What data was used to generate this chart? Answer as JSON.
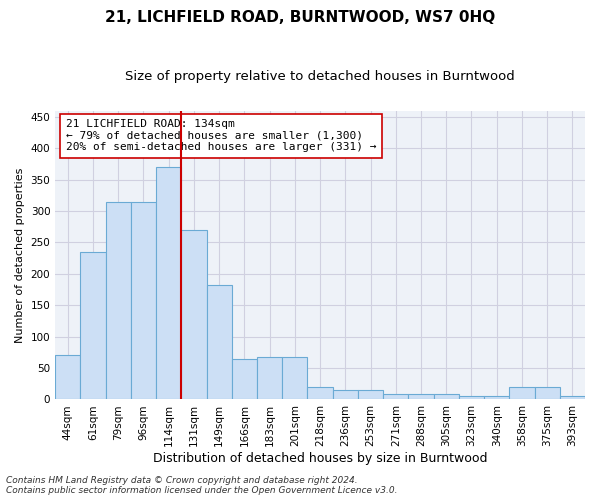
{
  "title": "21, LICHFIELD ROAD, BURNTWOOD, WS7 0HQ",
  "subtitle": "Size of property relative to detached houses in Burntwood",
  "xlabel": "Distribution of detached houses by size in Burntwood",
  "ylabel": "Number of detached properties",
  "categories": [
    "44sqm",
    "61sqm",
    "79sqm",
    "96sqm",
    "114sqm",
    "131sqm",
    "149sqm",
    "166sqm",
    "183sqm",
    "201sqm",
    "218sqm",
    "236sqm",
    "253sqm",
    "271sqm",
    "288sqm",
    "305sqm",
    "323sqm",
    "340sqm",
    "358sqm",
    "375sqm",
    "393sqm"
  ],
  "values": [
    70,
    235,
    315,
    315,
    370,
    270,
    183,
    65,
    68,
    68,
    20,
    15,
    15,
    8,
    8,
    8,
    5,
    5,
    20,
    20,
    5
  ],
  "bar_color": "#ccdff5",
  "bar_edge_color": "#6aaad4",
  "vline_index": 5,
  "vline_color": "#cc0000",
  "annotation_text": "21 LICHFIELD ROAD: 134sqm\n← 79% of detached houses are smaller (1,300)\n20% of semi-detached houses are larger (331) →",
  "annotation_box_color": "#ffffff",
  "annotation_box_edge": "#cc0000",
  "ylim": [
    0,
    460
  ],
  "yticks": [
    0,
    50,
    100,
    150,
    200,
    250,
    300,
    350,
    400,
    450
  ],
  "grid_color": "#d0d0e0",
  "bg_color": "#eef2f8",
  "footer_line1": "Contains HM Land Registry data © Crown copyright and database right 2024.",
  "footer_line2": "Contains public sector information licensed under the Open Government Licence v3.0.",
  "title_fontsize": 11,
  "subtitle_fontsize": 9.5,
  "xlabel_fontsize": 9,
  "ylabel_fontsize": 8,
  "tick_fontsize": 7.5,
  "annotation_fontsize": 8,
  "footer_fontsize": 6.5
}
